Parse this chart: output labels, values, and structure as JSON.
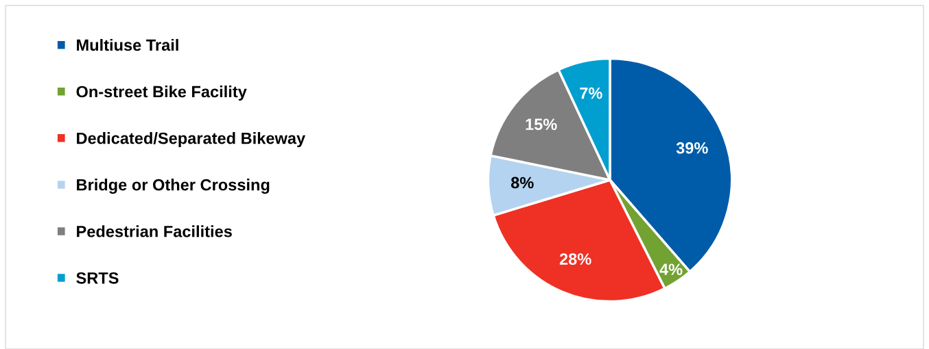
{
  "chart_data": {
    "type": "pie",
    "categories": [
      "Multiuse Trail",
      "On-street Bike Facility",
      "Dedicated/Separated Bikeway",
      "Bridge or Other Crossing",
      "Pedestrian Facilities",
      "SRTS"
    ],
    "values": [
      39,
      4,
      28,
      8,
      15,
      7
    ],
    "colors": [
      "#005ca9",
      "#72a232",
      "#ee3124",
      "#b4d3f0",
      "#7f7f7f",
      "#009fcf"
    ],
    "value_labels": [
      "39%",
      "4%",
      "28%",
      "8%",
      "15%",
      "7%"
    ],
    "legend": "left"
  }
}
